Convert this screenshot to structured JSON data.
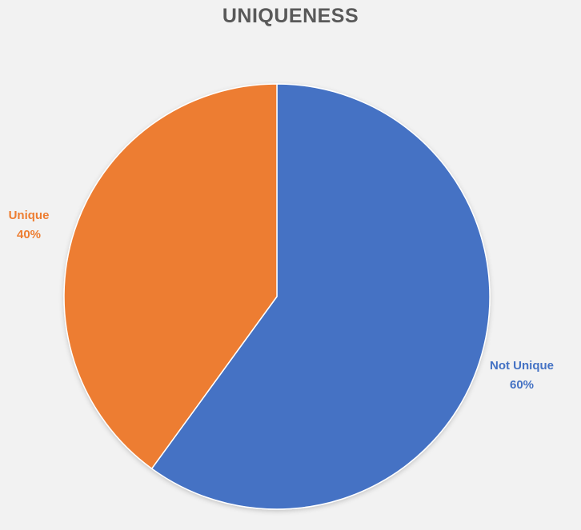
{
  "chart_data": {
    "type": "pie",
    "title": "UNIQUENESS",
    "slices": [
      {
        "label": "Not Unique",
        "value": 60,
        "percent_label": "60%",
        "color": "#4472c4"
      },
      {
        "label": "Unique",
        "value": 40,
        "percent_label": "40%",
        "color": "#ed7d31"
      }
    ],
    "start_angle_deg": 0,
    "direction": "clockwise",
    "background_color": "#f2f2f2",
    "slice_border_color": "#ffffff"
  }
}
